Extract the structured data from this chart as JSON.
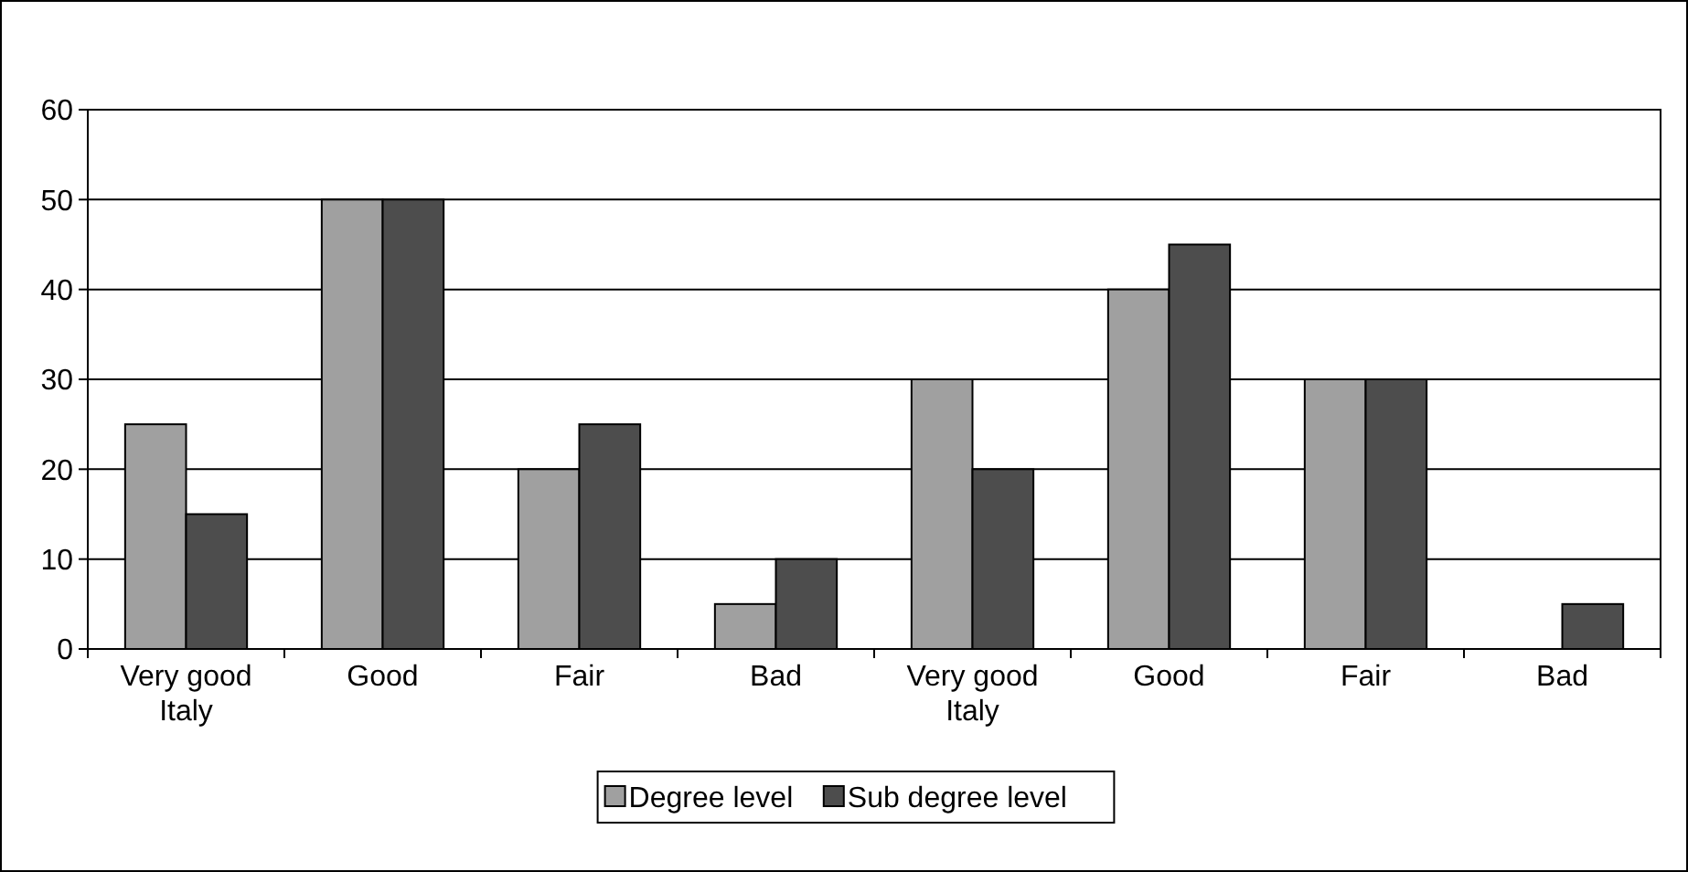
{
  "chart_data": {
    "type": "bar",
    "categories": [
      "Very good\nItaly",
      "Good",
      "Fair",
      "Bad",
      "Very good\nItaly",
      "Good",
      "Fair",
      "Bad"
    ],
    "series": [
      {
        "name": "Degree level",
        "color": "#a0a0a0",
        "values": [
          25,
          50,
          20,
          5,
          30,
          40,
          30,
          0
        ]
      },
      {
        "name": "Sub degree level",
        "color": "#4d4d4d",
        "values": [
          15,
          50,
          25,
          10,
          20,
          45,
          30,
          5
        ]
      }
    ],
    "ylim": [
      0,
      60
    ],
    "yticks": [
      0,
      10,
      20,
      30,
      40,
      50,
      60
    ],
    "grid": "y",
    "legend": "bottom"
  }
}
